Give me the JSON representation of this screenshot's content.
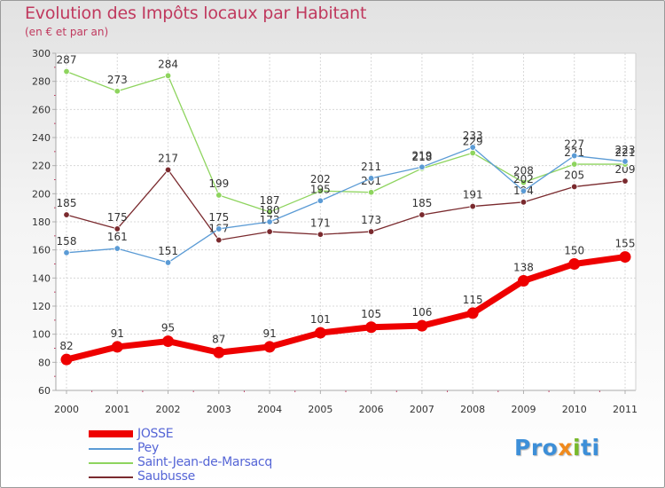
{
  "title": "Evolution des Impôts locaux par Habitant",
  "subtitle": "(en € et par an)",
  "chart_data": {
    "type": "line",
    "title": "Evolution des Impôts locaux par Habitant",
    "subtitle": "(en € et par an)",
    "xlabel": "",
    "ylabel": "",
    "ylim": [
      60,
      300
    ],
    "ytick_step": 20,
    "grid": true,
    "legend_position": "bottom-left",
    "categories": [
      "2000",
      "2001",
      "2002",
      "2003",
      "2004",
      "2005",
      "2006",
      "2007",
      "2008",
      "2009",
      "2010",
      "2011"
    ],
    "series": [
      {
        "name": "Saubusse",
        "color": "#7a2a2e",
        "style": "thin",
        "values": [
          185,
          175,
          217,
          167,
          173,
          171,
          173,
          185,
          191,
          194,
          205,
          209
        ]
      },
      {
        "name": "Saint-Jean-de-Marsacq",
        "color": "#8ed45e",
        "style": "thin",
        "values": [
          287,
          273,
          284,
          199,
          187,
          202,
          201,
          218,
          229,
          208,
          221,
          221
        ]
      },
      {
        "name": "Pey",
        "color": "#5b9bd5",
        "style": "thin",
        "values": [
          158,
          161,
          151,
          175,
          180,
          195,
          211,
          219,
          233,
          202,
          227,
          223
        ]
      },
      {
        "name": "JOSSE",
        "color": "#ee0000",
        "style": "thick",
        "values": [
          82,
          91,
          95,
          87,
          91,
          101,
          105,
          106,
          115,
          138,
          150,
          155
        ]
      }
    ]
  },
  "legend": [
    {
      "label": "JOSSE",
      "color": "#ee0000",
      "thick": true
    },
    {
      "label": "Pey",
      "color": "#5b9bd5",
      "thick": false
    },
    {
      "label": "Saint-Jean-de-Marsacq",
      "color": "#8ed45e",
      "thick": false
    },
    {
      "label": "Saubusse",
      "color": "#7a2a2e",
      "thick": false
    }
  ],
  "logo": {
    "part1": "Pro",
    "part2": "x",
    "part3": "i",
    "part4": "ti"
  }
}
